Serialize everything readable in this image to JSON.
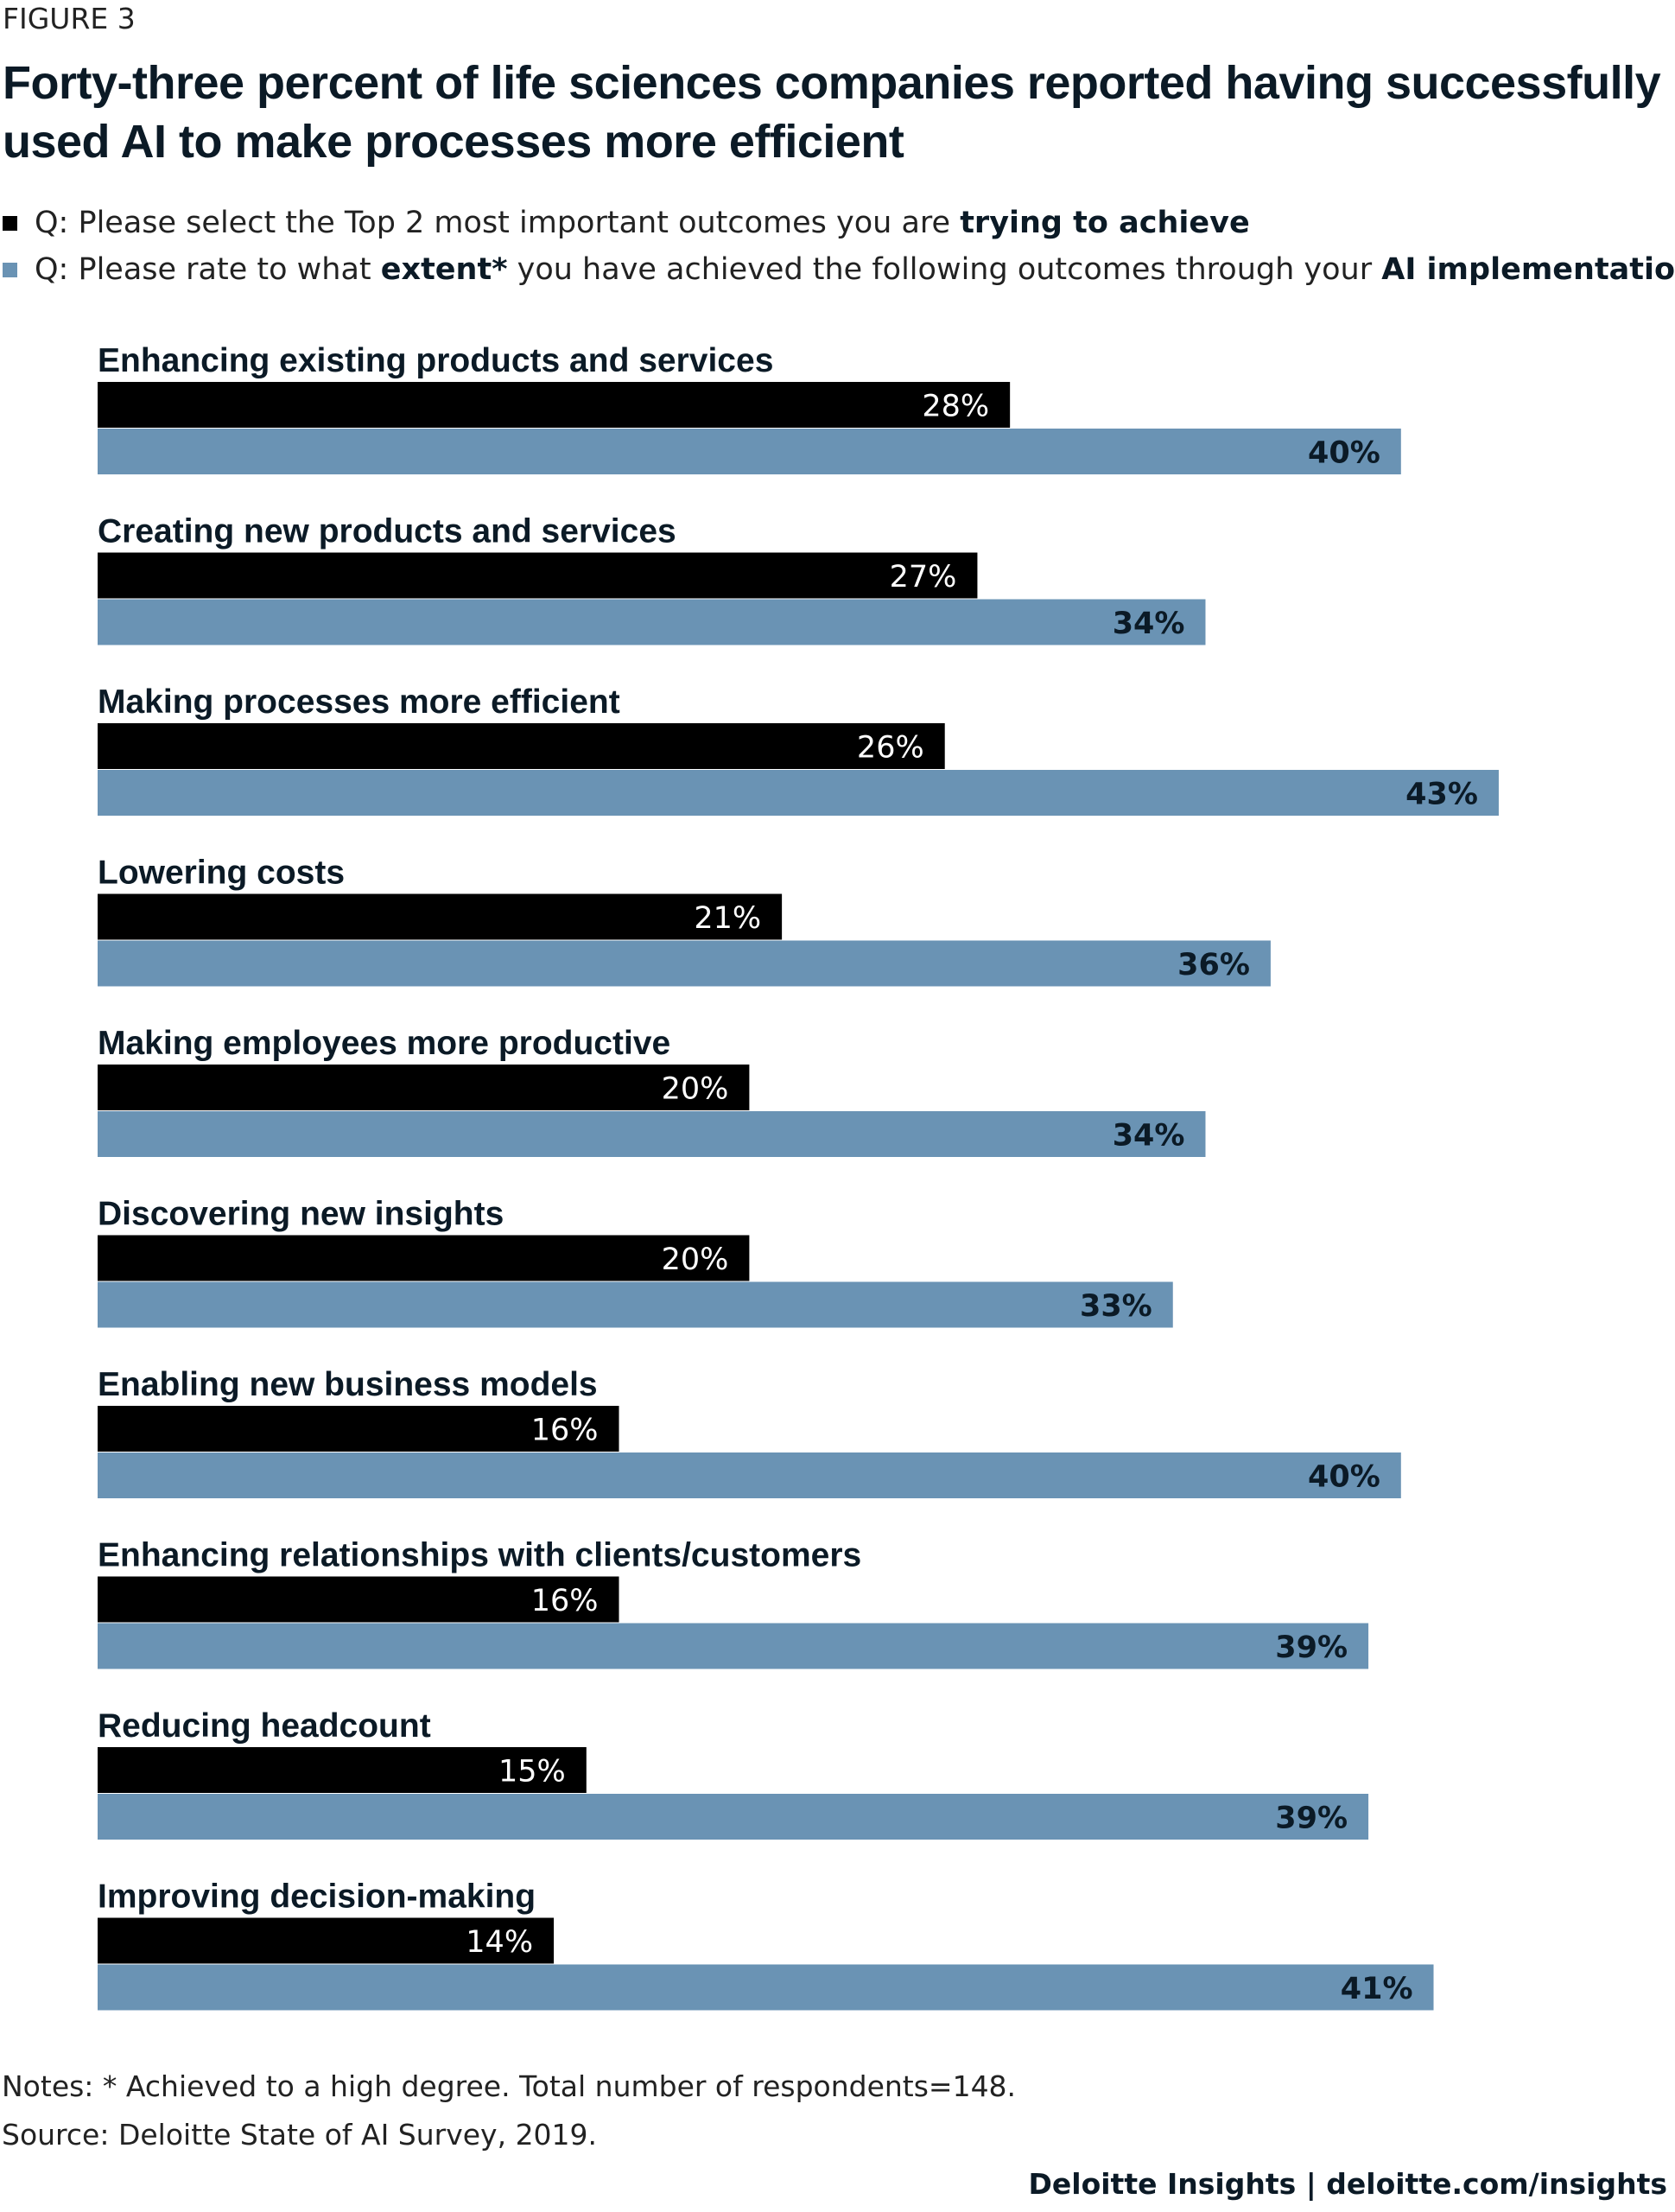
{
  "figure_label": "FIGURE 3",
  "legend": [
    {
      "parts": [
        {
          "text": "Q: Please select the Top 2 most important outcomes you are ",
          "bold": false
        },
        {
          "text": "trying to achieve",
          "bold": true
        }
      ],
      "color": "#000000"
    },
    {
      "parts": [
        {
          "text": "Q: Please rate to what ",
          "bold": false
        },
        {
          "text": "extent*",
          "bold": true
        },
        {
          "text": " you have achieved the following outcomes through your ",
          "bold": false
        },
        {
          "text": "AI implementations",
          "bold": true
        }
      ],
      "color": "#6a93b4"
    }
  ],
  "chart_data": {
    "type": "bar",
    "orientation": "horizontal",
    "title": "Forty-three percent of life sciences companies reported having successfully used AI to make processes more efficient",
    "categories": [
      "Enhancing existing products and services",
      "Creating new products and services",
      "Making processes more efficient",
      "Lowering costs",
      "Making employees more productive",
      "Discovering new insights",
      "Enabling new business models",
      "Enhancing relationships with clients/customers",
      "Reducing headcount",
      "Improving decision-making"
    ],
    "series": [
      {
        "values": [
          28,
          27,
          26,
          21,
          20,
          20,
          16,
          16,
          15,
          14
        ],
        "labels": [
          "28%",
          "27%",
          "26%",
          "21%",
          "20%",
          "20%",
          "16%",
          "16%",
          "15%",
          "14%"
        ],
        "color": "#000000"
      },
      {
        "values": [
          40,
          34,
          43,
          36,
          34,
          33,
          40,
          39,
          39,
          41
        ],
        "labels": [
          "40%",
          "34%",
          "43%",
          "36%",
          "34%",
          "33%",
          "40%",
          "39%",
          "39%",
          "41%"
        ],
        "color": "#6a93b4"
      }
    ],
    "xlim": [
      0,
      43
    ],
    "grid": false,
    "legend_position": "top-left"
  },
  "notes": "Notes: * Achieved to a high degree. Total number of respondents=148.",
  "source": "Source: Deloitte State of AI Survey, 2019.",
  "credit": "Deloitte Insights | deloitte.com/insights"
}
